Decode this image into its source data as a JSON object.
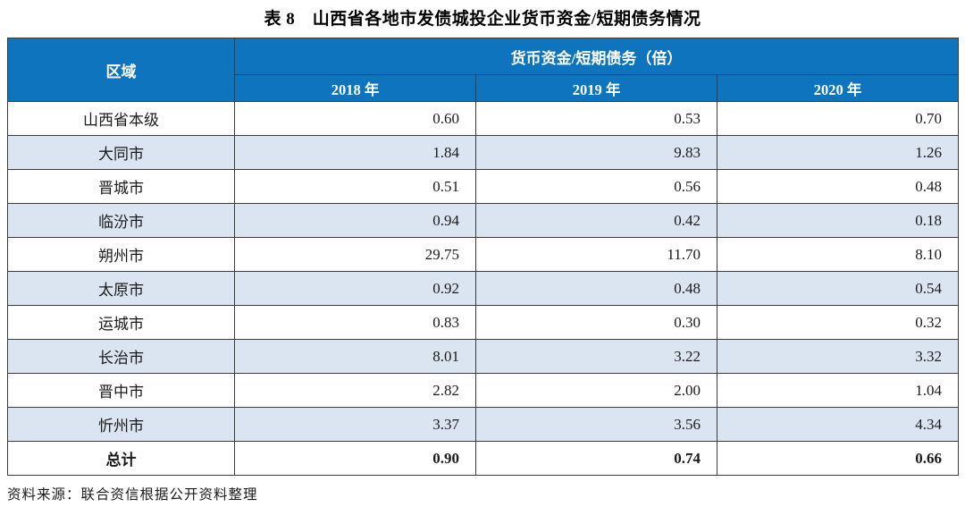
{
  "title": "表 8　山西省各地市发债城投企业货币资金/短期债务情况",
  "table": {
    "region_header": "区域",
    "group_header": "货币资金/短期债务（倍）",
    "year_headers": [
      "2018 年",
      "2019 年",
      "2020 年"
    ],
    "rows": [
      {
        "region": "山西省本级",
        "values": [
          "0.60",
          "0.53",
          "0.70"
        ]
      },
      {
        "region": "大同市",
        "values": [
          "1.84",
          "9.83",
          "1.26"
        ]
      },
      {
        "region": "晋城市",
        "values": [
          "0.51",
          "0.56",
          "0.48"
        ]
      },
      {
        "region": "临汾市",
        "values": [
          "0.94",
          "0.42",
          "0.18"
        ]
      },
      {
        "region": "朔州市",
        "values": [
          "29.75",
          "11.70",
          "8.10"
        ]
      },
      {
        "region": "太原市",
        "values": [
          "0.92",
          "0.48",
          "0.54"
        ]
      },
      {
        "region": "运城市",
        "values": [
          "0.83",
          "0.30",
          "0.32"
        ]
      },
      {
        "region": "长治市",
        "values": [
          "8.01",
          "3.22",
          "3.32"
        ]
      },
      {
        "region": "晋中市",
        "values": [
          "2.82",
          "2.00",
          "1.04"
        ]
      },
      {
        "region": "忻州市",
        "values": [
          "3.37",
          "3.56",
          "4.34"
        ]
      },
      {
        "region": "总计",
        "values": [
          "0.90",
          "0.74",
          "0.66"
        ]
      }
    ]
  },
  "source": "资料来源：联合资信根据公开资料整理",
  "colors": {
    "header_bg": "#0e74be",
    "header_text": "#ffffff",
    "stripe_bg": "#dbe4f1",
    "border": "#3c3c3c"
  }
}
